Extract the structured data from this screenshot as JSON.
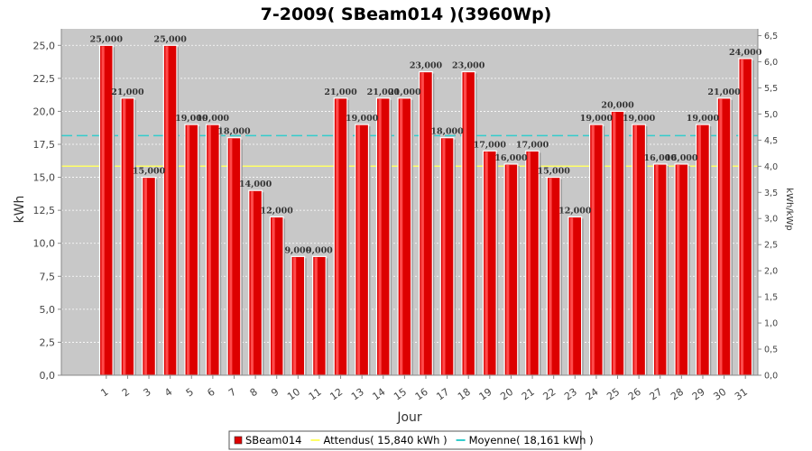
{
  "chart_data": {
    "type": "bar",
    "title": "7-2009( SBeam014 )(3960Wp)",
    "xlabel": "Jour",
    "ylabel": "kWh",
    "y2label": "kWh/kWp",
    "ylim": [
      0,
      26.25
    ],
    "y2lim": [
      0,
      6.63
    ],
    "yticks": [
      "0,0",
      "2,5",
      "5,0",
      "7,5",
      "10,0",
      "12,5",
      "15,0",
      "17,5",
      "20,0",
      "22,5",
      "25,0"
    ],
    "y2ticks": [
      "0,0",
      "0,5",
      "1,0",
      "1,5",
      "2,0",
      "2,5",
      "3,0",
      "3,5",
      "4,0",
      "4,5",
      "5,0",
      "5,5",
      "6,0",
      "6,5"
    ],
    "categories": [
      "1",
      "2",
      "3",
      "4",
      "5",
      "6",
      "7",
      "8",
      "9",
      "10",
      "11",
      "12",
      "13",
      "14",
      "15",
      "16",
      "17",
      "18",
      "19",
      "20",
      "21",
      "22",
      "23",
      "24",
      "25",
      "26",
      "27",
      "28",
      "29",
      "30",
      "31"
    ],
    "series": [
      {
        "name": "SBeam014",
        "color": "#dd0000",
        "values": [
          25,
          21,
          15,
          25,
          19,
          19,
          18,
          14,
          12,
          9,
          9,
          21,
          19,
          21,
          21,
          23,
          18,
          23,
          17,
          16,
          17,
          15,
          12,
          19,
          20,
          19,
          16,
          16,
          19,
          21,
          24
        ],
        "labels": [
          "25,000",
          "21,000",
          "15,000",
          "25,000",
          "19,000",
          "19,000",
          "18,000",
          "14,000",
          "12,000",
          "9,000",
          "9,000",
          "21,000",
          "19,000",
          "21,000",
          "21,000",
          "23,000",
          "18,000",
          "23,000",
          "17,000",
          "16,000",
          "17,000",
          "15,000",
          "12,000",
          "19,000",
          "20,000",
          "19,000",
          "16,000",
          "16,000",
          "19,000",
          "21,000",
          "24,000"
        ]
      }
    ],
    "reference_lines": [
      {
        "name": "Attendus",
        "value": 15.84,
        "color": "#ffff66",
        "style": "solid"
      },
      {
        "name": "Moyenne",
        "value": 18.161,
        "color": "#33cccc",
        "style": "dashed"
      }
    ],
    "legend": {
      "position": "bottom",
      "items": [
        {
          "label": "SBeam014",
          "color": "#dd0000",
          "kind": "box"
        },
        {
          "label": "Attendus( 15,840 kWh )",
          "color": "#ffff66",
          "kind": "line"
        },
        {
          "label": "Moyenne( 18,161 kWh )",
          "color": "#33cccc",
          "kind": "line"
        }
      ]
    },
    "grid": true,
    "plot_background": "#c8c8c8"
  }
}
